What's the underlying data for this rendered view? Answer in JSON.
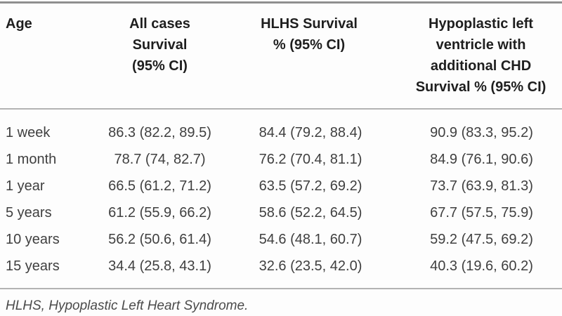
{
  "table": {
    "columns": [
      {
        "key": "age",
        "lines": [
          "Age"
        ]
      },
      {
        "key": "all_cases",
        "lines": [
          "All cases",
          "Survival",
          "(95% CI)"
        ]
      },
      {
        "key": "hlhs",
        "lines": [
          "HLHS Survival",
          "% (95% CI)"
        ]
      },
      {
        "key": "hlv_chd",
        "lines": [
          "Hypoplastic left",
          "ventricle with",
          "additional CHD",
          "Survival % (95% CI)"
        ]
      }
    ],
    "rows": [
      {
        "age": "1 week",
        "all_cases": "86.3 (82.2, 89.5)",
        "hlhs": "84.4 (79.2, 88.4)",
        "hlv_chd": "90.9 (83.3, 95.2)"
      },
      {
        "age": "1 month",
        "all_cases": "78.7 (74, 82.7)",
        "hlhs": "76.2 (70.4, 81.1)",
        "hlv_chd": "84.9 (76.1, 90.6)"
      },
      {
        "age": "1 year",
        "all_cases": "66.5 (61.2, 71.2)",
        "hlhs": "63.5 (57.2, 69.2)",
        "hlv_chd": "73.7 (63.9, 81.3)"
      },
      {
        "age": "5 years",
        "all_cases": "61.2 (55.9, 66.2)",
        "hlhs": "58.6 (52.2, 64.5)",
        "hlv_chd": "67.7 (57.5, 75.9)"
      },
      {
        "age": "10 years",
        "all_cases": "56.2 (50.6, 61.4)",
        "hlhs": "54.6 (48.1, 60.7)",
        "hlv_chd": "59.2 (47.5, 69.2)"
      },
      {
        "age": "15 years",
        "all_cases": "34.4 (25.8, 43.1)",
        "hlhs": "32.6 (23.5, 42.0)",
        "hlv_chd": "40.3 (19.6, 60.2)"
      }
    ],
    "footnote": "HLHS, Hypoplastic Left Heart Syndrome."
  },
  "colors": {
    "header_text": "#1e1e1e",
    "body_text": "#3f3f3f",
    "footnote_text": "#4a4a4a",
    "rule_top": "#8f8f8f",
    "rule_inner": "#b3b3b3",
    "background": "#fdfdfd"
  }
}
